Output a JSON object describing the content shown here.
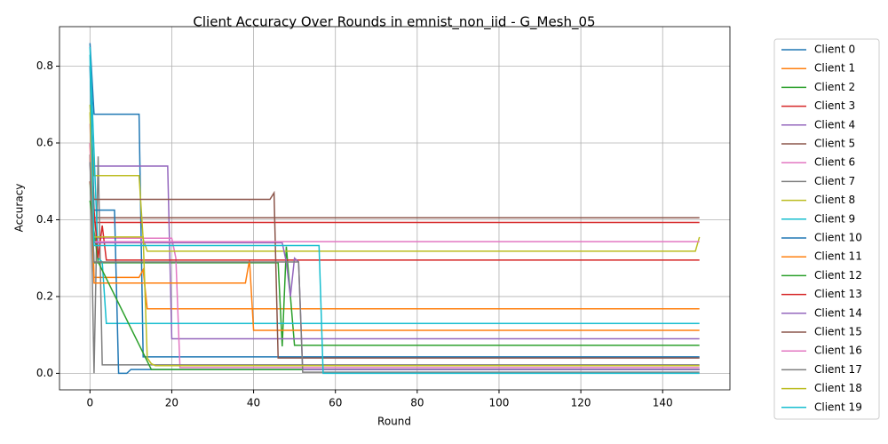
{
  "chart_data": {
    "type": "line",
    "title": "Client Accuracy Over Rounds in emnist_non_iid - G_Mesh_05",
    "x_label": "Round",
    "y_label": "Accuracy",
    "xlim": [
      -7.45,
      156.45
    ],
    "ylim": [
      -0.043,
      0.903
    ],
    "xticks": [
      0,
      20,
      40,
      60,
      80,
      100,
      120,
      140
    ],
    "yticks": [
      {
        "value": 0,
        "label": "0.0"
      },
      0.2,
      0.4,
      0.6,
      0.8
    ],
    "grid": true,
    "legend": "outside-upper-right",
    "series": [
      {
        "name": "Client 0",
        "color": "#1f77b4",
        "x": [
          0,
          1,
          12,
          13,
          149
        ],
        "values": [
          0.86,
          0.675,
          0.675,
          0.043,
          0.043
        ]
      },
      {
        "name": "Client 1",
        "color": "#ff7f0e",
        "x": [
          0,
          1,
          12,
          13,
          14,
          149
        ],
        "values": [
          0.57,
          0.25,
          0.25,
          0.27,
          0.168,
          0.168
        ]
      },
      {
        "name": "Client 2",
        "color": "#2ca02c",
        "x": [
          0,
          1,
          46,
          47,
          48,
          50,
          149
        ],
        "values": [
          0.5,
          0.288,
          0.288,
          0.07,
          0.33,
          0.073,
          0.073
        ]
      },
      {
        "name": "Client 3",
        "color": "#d62728",
        "x": [
          0,
          1,
          149
        ],
        "values": [
          0.5,
          0.393,
          0.393
        ]
      },
      {
        "name": "Client 4",
        "color": "#9467bd",
        "x": [
          0,
          1,
          19,
          20,
          149
        ],
        "values": [
          0.6,
          0.54,
          0.54,
          0.09,
          0.09
        ]
      },
      {
        "name": "Client 5",
        "color": "#8c564b",
        "x": [
          0,
          1,
          149
        ],
        "values": [
          0.55,
          0.405,
          0.405
        ]
      },
      {
        "name": "Client 6",
        "color": "#e377c2",
        "x": [
          0,
          1,
          20,
          21,
          22,
          149
        ],
        "values": [
          0.65,
          0.352,
          0.352,
          0.3,
          0.015,
          0.015
        ]
      },
      {
        "name": "Client 7",
        "color": "#7f7f7f",
        "x": [
          0,
          1,
          2,
          3,
          149
        ],
        "values": [
          0.57,
          0,
          0.565,
          0.022,
          0.022
        ]
      },
      {
        "name": "Client 8",
        "color": "#bcbd22",
        "x": [
          0,
          1,
          12,
          13,
          14,
          148,
          149
        ],
        "values": [
          0.7,
          0.515,
          0.515,
          0.35,
          0.318,
          0.318,
          0.355
        ]
      },
      {
        "name": "Client 9",
        "color": "#17becf",
        "x": [
          0,
          2,
          3,
          4,
          149
        ],
        "values": [
          0.85,
          0.3,
          0.29,
          0.13,
          0.13
        ]
      },
      {
        "name": "Client 10",
        "color": "#1f77b4",
        "x": [
          0,
          1,
          6,
          7,
          9,
          10,
          149
        ],
        "values": [
          0.8,
          0.425,
          0.425,
          0,
          0,
          0.01,
          0.01
        ]
      },
      {
        "name": "Client 11",
        "color": "#ff7f0e",
        "x": [
          0,
          1,
          38,
          39,
          40,
          149
        ],
        "values": [
          0.6,
          0.235,
          0.235,
          0.295,
          0.112,
          0.112
        ]
      },
      {
        "name": "Client 12",
        "color": "#2ca02c",
        "x": [
          0,
          2,
          15,
          149
        ],
        "values": [
          0.45,
          0.29,
          0.01,
          0.01
        ]
      },
      {
        "name": "Client 13",
        "color": "#d62728",
        "x": [
          0,
          2,
          3,
          4,
          149
        ],
        "values": [
          0.55,
          0.3,
          0.385,
          0.295,
          0.295
        ]
      },
      {
        "name": "Client 14",
        "color": "#9467bd",
        "x": [
          0,
          1,
          47,
          48,
          49,
          50,
          51,
          52,
          149
        ],
        "values": [
          0.55,
          0.34,
          0.34,
          0.29,
          0.2,
          0.3,
          0.29,
          0.01,
          0.01
        ]
      },
      {
        "name": "Client 15",
        "color": "#8c564b",
        "x": [
          0,
          1,
          44,
          45,
          46,
          149
        ],
        "values": [
          0.6,
          0.453,
          0.453,
          0.47,
          0.04,
          0.04
        ]
      },
      {
        "name": "Client 16",
        "color": "#e377c2",
        "x": [
          0,
          1,
          149
        ],
        "values": [
          0.6,
          0.343,
          0.343
        ]
      },
      {
        "name": "Client 17",
        "color": "#7f7f7f",
        "x": [
          0,
          1,
          51,
          52,
          149
        ],
        "values": [
          0.55,
          0.29,
          0.29,
          0.003,
          0.003
        ]
      },
      {
        "name": "Client 18",
        "color": "#bcbd22",
        "x": [
          0,
          1,
          13,
          14,
          15,
          16,
          149
        ],
        "values": [
          0.68,
          0.355,
          0.355,
          0.04,
          0.025,
          0.02,
          0.02
        ]
      },
      {
        "name": "Client 19",
        "color": "#17becf",
        "x": [
          0,
          1,
          56,
          57,
          149
        ],
        "values": [
          0.83,
          0.333,
          0.333,
          0,
          0
        ]
      }
    ]
  }
}
